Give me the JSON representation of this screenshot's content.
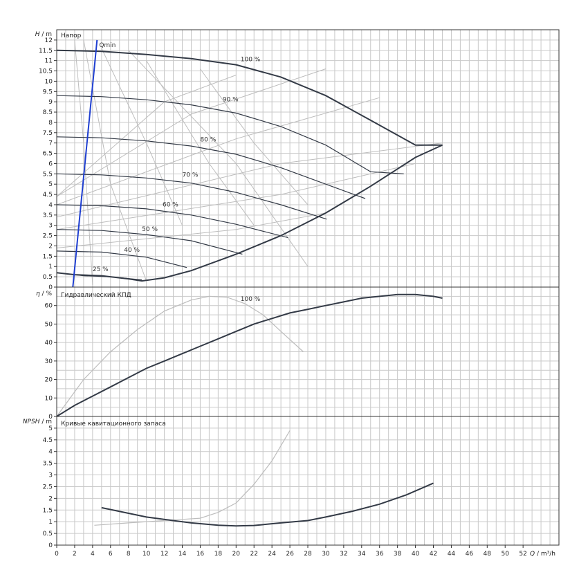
{
  "chart_data": [
    {
      "type": "line",
      "title": "Напор",
      "ylabel_var": "H",
      "ylabel_unit": " / m",
      "xlim": [
        0,
        56
      ],
      "ylim": [
        0,
        12.5
      ],
      "yticks": [
        "0",
        "0.5",
        "1",
        "1.5",
        "2",
        "2.5",
        "3",
        "3.5",
        "4",
        "4.5",
        "5",
        "5.5",
        "6",
        "6.5",
        "7",
        "7.5",
        "8",
        "8.5",
        "9",
        "9.5",
        "10",
        "10.5",
        "11",
        "11.5",
        "12"
      ],
      "speed_curves": [
        {
          "label": "100 %",
          "x": [
            0,
            5,
            10,
            15,
            20,
            25,
            30,
            35,
            40,
            43
          ],
          "y": [
            11.5,
            11.45,
            11.3,
            11.1,
            10.8,
            10.2,
            9.3,
            8.1,
            6.9,
            6.9
          ]
        },
        {
          "label": "90 %",
          "x": [
            0,
            5,
            10,
            15,
            20,
            25,
            30,
            35,
            38.7
          ],
          "y": [
            9.3,
            9.25,
            9.1,
            8.85,
            8.45,
            7.8,
            6.9,
            5.6,
            5.5
          ]
        },
        {
          "label": "80 %",
          "x": [
            0,
            5,
            10,
            15,
            20,
            25,
            30,
            34.4
          ],
          "y": [
            7.3,
            7.25,
            7.1,
            6.85,
            6.45,
            5.8,
            5.0,
            4.3
          ]
        },
        {
          "label": "70 %",
          "x": [
            0,
            5,
            10,
            15,
            20,
            25,
            30.1
          ],
          "y": [
            5.5,
            5.45,
            5.3,
            5.05,
            4.6,
            4.0,
            3.3
          ]
        },
        {
          "label": "60 %",
          "x": [
            0,
            5,
            10,
            15,
            20,
            25.8
          ],
          "y": [
            4.0,
            3.95,
            3.8,
            3.5,
            3.05,
            2.4
          ]
        },
        {
          "label": "50 %",
          "x": [
            0,
            5,
            10,
            15,
            20.7
          ],
          "y": [
            2.8,
            2.75,
            2.55,
            2.25,
            1.6
          ]
        },
        {
          "label": "40 %",
          "x": [
            0,
            5,
            10,
            14.5
          ],
          "y": [
            1.75,
            1.7,
            1.45,
            0.95
          ]
        },
        {
          "label": "25 %",
          "x": [
            0,
            3,
            6,
            9.5
          ],
          "y": [
            0.7,
            0.55,
            0.5,
            0.35
          ]
        }
      ],
      "envelope": {
        "x": [
          0,
          2,
          5,
          8,
          9.5,
          12,
          15,
          20,
          25,
          30,
          35,
          40,
          43
        ],
        "y": [
          0.7,
          0.6,
          0.55,
          0.4,
          0.3,
          0.45,
          0.8,
          1.6,
          2.5,
          3.6,
          4.9,
          6.3,
          6.9
        ]
      },
      "qmin": {
        "label": "Qmin",
        "x": [
          1.8,
          4.5
        ],
        "y": [
          0,
          12
        ]
      }
    },
    {
      "type": "line",
      "title": "Гидравлический КПД",
      "ylabel_var": "η",
      "ylabel_unit": " / %",
      "xlim": [
        0,
        56
      ],
      "ylim": [
        0,
        70
      ],
      "yticks": [
        "0",
        "10",
        "20",
        "30",
        "40",
        "50",
        "60"
      ],
      "series": [
        {
          "label": "100 %",
          "x": [
            0,
            2,
            4,
            6,
            8,
            10,
            12,
            14,
            16,
            18,
            20,
            22,
            24,
            26,
            28,
            30,
            32,
            34,
            36,
            38,
            40,
            42,
            43
          ],
          "y": [
            0,
            6,
            11,
            16,
            21,
            26,
            30,
            34,
            38,
            42,
            46,
            50,
            53,
            56,
            58,
            60,
            62,
            64,
            65,
            66,
            66,
            65,
            64
          ]
        }
      ],
      "faint_curve": {
        "x": [
          0,
          3,
          6,
          9,
          12,
          15,
          17,
          19,
          21,
          23,
          25,
          27.5
        ],
        "y": [
          0,
          20,
          35,
          47,
          57,
          63,
          65,
          64.5,
          61,
          55,
          46,
          35
        ]
      }
    },
    {
      "type": "line",
      "title": "Кривые кавитационного запаса",
      "ylabel_var": "NPSH",
      "ylabel_unit": " / m",
      "xlim": [
        0,
        56
      ],
      "ylim": [
        0,
        5.5
      ],
      "yticks": [
        "0",
        "0.5",
        "1",
        "1.5",
        "2",
        "2.5",
        "3",
        "3.5",
        "4",
        "4.5",
        "5"
      ],
      "xticks": [
        "0",
        "2",
        "4",
        "6",
        "8",
        "10",
        "12",
        "14",
        "16",
        "18",
        "20",
        "22",
        "24",
        "26",
        "28",
        "30",
        "32",
        "34",
        "36",
        "38",
        "40",
        "42",
        "44",
        "46",
        "48",
        "50",
        "52"
      ],
      "xlabel_var": "Q",
      "xlabel_unit": " / m³/h",
      "series": [
        {
          "x": [
            5,
            10,
            15,
            18,
            20,
            22,
            25,
            28,
            30,
            33,
            36,
            39,
            42
          ],
          "y": [
            1.6,
            1.2,
            0.95,
            0.85,
            0.82,
            0.84,
            0.95,
            1.05,
            1.2,
            1.45,
            1.75,
            2.15,
            2.65
          ]
        }
      ],
      "faint_curve": {
        "x": [
          4.2,
          8,
          12,
          16,
          18,
          20,
          22,
          24,
          26
        ],
        "y": [
          0.85,
          0.95,
          1.05,
          1.15,
          1.4,
          1.8,
          2.6,
          3.6,
          4.9
        ]
      }
    }
  ]
}
